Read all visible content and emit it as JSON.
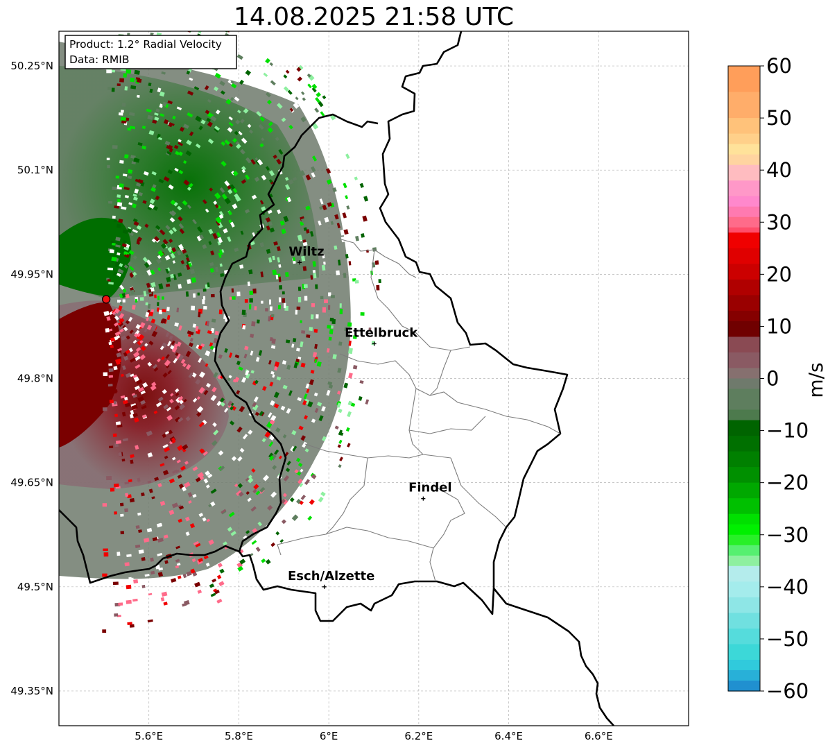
{
  "title": "14.08.2025 21:58 UTC",
  "info_box": {
    "line1": "Product: 1.2° Radial Velocity",
    "line2": "Data: RMIB"
  },
  "map": {
    "lon_range": [
      5.4,
      6.8
    ],
    "lat_range": [
      49.3,
      50.3
    ],
    "lat_ticks": [
      {
        "value": 50.25,
        "label": "50.25°N"
      },
      {
        "value": 50.1,
        "label": "50.1°N"
      },
      {
        "value": 49.95,
        "label": "49.95°N"
      },
      {
        "value": 49.8,
        "label": "49.8°N"
      },
      {
        "value": 49.65,
        "label": "49.65°N"
      },
      {
        "value": 49.5,
        "label": "49.5°N"
      },
      {
        "value": 49.35,
        "label": "49.35°N"
      }
    ],
    "lon_ticks": [
      {
        "value": 5.6,
        "label": "5.6°E"
      },
      {
        "value": 5.8,
        "label": "5.8°E"
      },
      {
        "value": 6.0,
        "label": "6°E"
      },
      {
        "value": 6.2,
        "label": "6.2°E"
      },
      {
        "value": 6.4,
        "label": "6.4°E"
      },
      {
        "value": 6.6,
        "label": "6.6°E"
      }
    ],
    "grid": true,
    "radar_site": {
      "lon": 5.505,
      "lat": 49.914
    },
    "cities": [
      {
        "name": "Wiltz",
        "lon": 5.935,
        "lat": 49.967
      },
      {
        "name": "Ettelbruck",
        "lon": 6.101,
        "lat": 49.85
      },
      {
        "name": "Findel",
        "lon": 6.21,
        "lat": 49.627
      },
      {
        "name": "Esch/Alzette",
        "lon": 5.99,
        "lat": 49.5
      }
    ]
  },
  "colorbar": {
    "label": "m/s",
    "min": -60,
    "max": 60,
    "ticks": [
      "60",
      "50",
      "40",
      "30",
      "20",
      "10",
      "0",
      "−10",
      "−20",
      "−30",
      "−40",
      "−50",
      "−60"
    ],
    "tick_values": [
      60,
      50,
      40,
      30,
      20,
      10,
      0,
      -10,
      -20,
      -30,
      -40,
      -50,
      -60
    ],
    "colors": {
      "orange": "#ff9e5a",
      "pink": "#ff6b8a",
      "red": "#f00000",
      "dark_red": "#7a0000",
      "mauve": "#8a5a63",
      "gray_green": "#5e7e5e",
      "dark_green": "#006400",
      "green": "#00e000",
      "light_green": "#8ef0a0",
      "cyan": "#33dada",
      "blue": "#1f78c8"
    }
  }
}
